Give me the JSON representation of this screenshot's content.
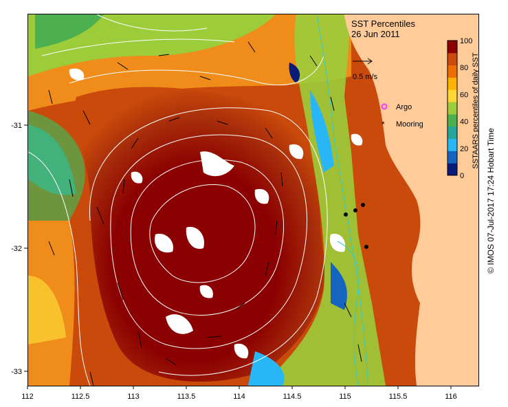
{
  "title": "SST Percentiles",
  "date": "26 Jun 2011",
  "speed_reference": "0.5 m/s",
  "legend": {
    "argo": "Argo",
    "mooring": "Mooring"
  },
  "colorbar": {
    "label": "SSTAARS percentiles of daily SST",
    "ticks": [
      "0",
      "20",
      "40",
      "60",
      "80",
      "100"
    ],
    "colors": [
      "#0a1a7a",
      "#1565c0",
      "#29b6f6",
      "#26a69a",
      "#4caf50",
      "#9ccc3a",
      "#fdd835",
      "#ffb300",
      "#ef6c00",
      "#c94a0a",
      "#8b0000"
    ]
  },
  "x_ticks": [
    "112",
    "112.5",
    "113",
    "113.5",
    "114",
    "114.5",
    "115",
    "115.5",
    "116"
  ],
  "y_ticks": [
    "-31",
    "-32",
    "-33"
  ],
  "credit": "© IMOS 07-Jul-2017 17:24 Hobart Time",
  "colors": {
    "land": "#ffcc99",
    "ocean_warm": "#8b0000",
    "contour": "#ffffff",
    "coast_contour": "#33cccc",
    "argo": "#ff33ff",
    "mooring": "#000000"
  }
}
